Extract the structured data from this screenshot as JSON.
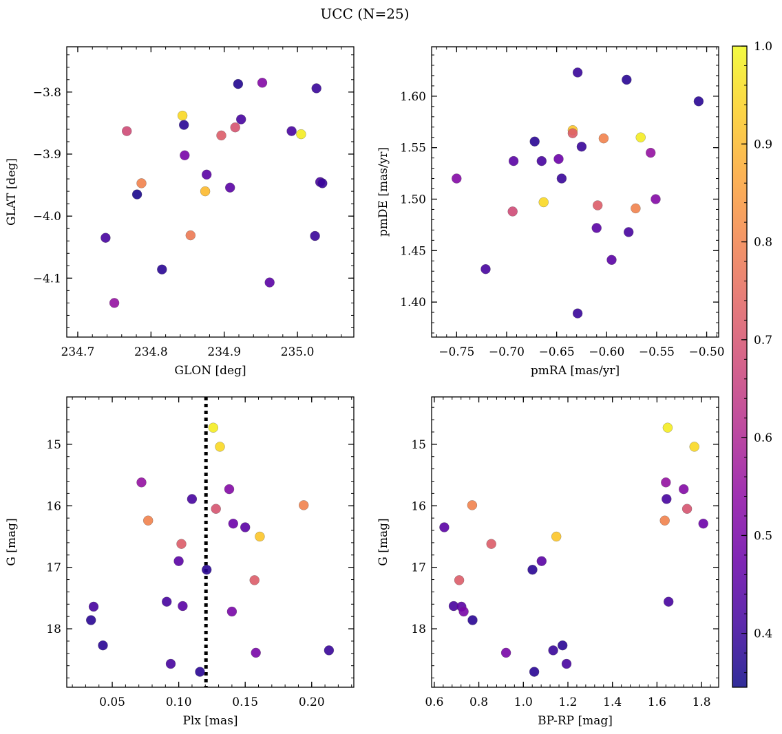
{
  "figure": {
    "title": "UCC (N=25)",
    "colorbar": {
      "min": 0.345,
      "max": 1.0,
      "ticks": [
        0.4,
        0.5,
        0.6,
        0.7,
        0.8,
        0.9,
        1.0
      ],
      "colormap": "plasma"
    }
  },
  "chart_data": [
    {
      "type": "scatter",
      "xlabel": "GLON [deg]",
      "ylabel": "GLAT [deg]",
      "xlim": [
        234.685,
        235.077
      ],
      "ylim": [
        -4.195,
        -3.727
      ],
      "y_inverted": false,
      "xticks": [
        234.7,
        234.8,
        234.9,
        235.0
      ],
      "yticks": [
        -4.1,
        -4.0,
        -3.9,
        -3.8
      ],
      "points": [
        {
          "x": 234.919,
          "y": -3.787,
          "c": 0.37
        },
        {
          "x": 234.952,
          "y": -3.785,
          "c": 0.52
        },
        {
          "x": 235.026,
          "y": -3.794,
          "c": 0.4
        },
        {
          "x": 234.843,
          "y": -3.838,
          "c": 0.95
        },
        {
          "x": 234.923,
          "y": -3.844,
          "c": 0.42
        },
        {
          "x": 234.845,
          "y": -3.853,
          "c": 0.38
        },
        {
          "x": 234.915,
          "y": -3.857,
          "c": 0.7
        },
        {
          "x": 234.767,
          "y": -3.863,
          "c": 0.68
        },
        {
          "x": 234.896,
          "y": -3.87,
          "c": 0.72
        },
        {
          "x": 234.992,
          "y": -3.863,
          "c": 0.42
        },
        {
          "x": 235.005,
          "y": -3.868,
          "c": 0.98
        },
        {
          "x": 234.846,
          "y": -3.902,
          "c": 0.5
        },
        {
          "x": 234.876,
          "y": -3.933,
          "c": 0.45
        },
        {
          "x": 235.031,
          "y": -3.945,
          "c": 0.42
        },
        {
          "x": 235.034,
          "y": -3.947,
          "c": 0.4
        },
        {
          "x": 234.787,
          "y": -3.947,
          "c": 0.8
        },
        {
          "x": 234.908,
          "y": -3.954,
          "c": 0.45
        },
        {
          "x": 234.874,
          "y": -3.96,
          "c": 0.9
        },
        {
          "x": 234.781,
          "y": -3.965,
          "c": 0.36
        },
        {
          "x": 234.854,
          "y": -4.031,
          "c": 0.78
        },
        {
          "x": 235.024,
          "y": -4.032,
          "c": 0.4
        },
        {
          "x": 234.738,
          "y": -4.035,
          "c": 0.42
        },
        {
          "x": 234.815,
          "y": -4.086,
          "c": 0.38
        },
        {
          "x": 234.962,
          "y": -4.107,
          "c": 0.45
        },
        {
          "x": 234.75,
          "y": -4.14,
          "c": 0.55
        }
      ]
    },
    {
      "type": "scatter",
      "xlabel": "pmRA [mas/yr]",
      "ylabel": "pmDE [mas/yr]",
      "xlim": [
        -0.775,
        -0.488
      ],
      "ylim": [
        1.366,
        1.648
      ],
      "y_inverted": false,
      "xticks": [
        -0.75,
        -0.7,
        -0.65,
        -0.6,
        -0.55,
        -0.5
      ],
      "yticks": [
        1.4,
        1.45,
        1.5,
        1.55,
        1.6
      ],
      "points": [
        {
          "x": -0.629,
          "y": 1.623,
          "c": 0.4
        },
        {
          "x": -0.58,
          "y": 1.616,
          "c": 0.38
        },
        {
          "x": -0.508,
          "y": 1.595,
          "c": 0.38
        },
        {
          "x": -0.634,
          "y": 1.567,
          "c": 0.92
        },
        {
          "x": -0.634,
          "y": 1.564,
          "c": 0.72
        },
        {
          "x": -0.566,
          "y": 1.56,
          "c": 0.98
        },
        {
          "x": -0.603,
          "y": 1.559,
          "c": 0.8
        },
        {
          "x": -0.672,
          "y": 1.556,
          "c": 0.38
        },
        {
          "x": -0.625,
          "y": 1.551,
          "c": 0.4
        },
        {
          "x": -0.556,
          "y": 1.545,
          "c": 0.55
        },
        {
          "x": -0.648,
          "y": 1.539,
          "c": 0.48
        },
        {
          "x": -0.693,
          "y": 1.537,
          "c": 0.45
        },
        {
          "x": -0.665,
          "y": 1.537,
          "c": 0.42
        },
        {
          "x": -0.75,
          "y": 1.52,
          "c": 0.52
        },
        {
          "x": -0.645,
          "y": 1.52,
          "c": 0.4
        },
        {
          "x": -0.551,
          "y": 1.5,
          "c": 0.52
        },
        {
          "x": -0.663,
          "y": 1.497,
          "c": 0.95
        },
        {
          "x": -0.609,
          "y": 1.494,
          "c": 0.72
        },
        {
          "x": -0.571,
          "y": 1.491,
          "c": 0.8
        },
        {
          "x": -0.694,
          "y": 1.488,
          "c": 0.68
        },
        {
          "x": -0.61,
          "y": 1.472,
          "c": 0.45
        },
        {
          "x": -0.578,
          "y": 1.468,
          "c": 0.42
        },
        {
          "x": -0.595,
          "y": 1.441,
          "c": 0.45
        },
        {
          "x": -0.721,
          "y": 1.432,
          "c": 0.42
        },
        {
          "x": -0.629,
          "y": 1.389,
          "c": 0.4
        }
      ]
    },
    {
      "type": "scatter",
      "xlabel": "Plx [mas]",
      "ylabel": "G [mag]",
      "xlim": [
        0.0158,
        0.2317
      ],
      "ylim": [
        18.95,
        14.23
      ],
      "y_inverted": true,
      "xticks": [
        0.05,
        0.1,
        0.15,
        0.2
      ],
      "yticks": [
        15,
        16,
        17,
        18
      ],
      "vline": {
        "x": 0.1205,
        "style": "dotted"
      },
      "points": [
        {
          "x": 0.126,
          "y": 14.73,
          "c": 0.98
        },
        {
          "x": 0.131,
          "y": 15.04,
          "c": 0.95
        },
        {
          "x": 0.072,
          "y": 15.62,
          "c": 0.55
        },
        {
          "x": 0.138,
          "y": 15.73,
          "c": 0.52
        },
        {
          "x": 0.11,
          "y": 15.89,
          "c": 0.42
        },
        {
          "x": 0.194,
          "y": 15.99,
          "c": 0.8
        },
        {
          "x": 0.128,
          "y": 16.05,
          "c": 0.7
        },
        {
          "x": 0.077,
          "y": 16.24,
          "c": 0.8
        },
        {
          "x": 0.141,
          "y": 16.29,
          "c": 0.48
        },
        {
          "x": 0.15,
          "y": 16.35,
          "c": 0.45
        },
        {
          "x": 0.161,
          "y": 16.5,
          "c": 0.92
        },
        {
          "x": 0.102,
          "y": 16.62,
          "c": 0.72
        },
        {
          "x": 0.1,
          "y": 16.9,
          "c": 0.45
        },
        {
          "x": 0.121,
          "y": 17.04,
          "c": 0.38
        },
        {
          "x": 0.157,
          "y": 17.21,
          "c": 0.72
        },
        {
          "x": 0.091,
          "y": 17.56,
          "c": 0.42
        },
        {
          "x": 0.036,
          "y": 17.64,
          "c": 0.42
        },
        {
          "x": 0.103,
          "y": 17.63,
          "c": 0.45
        },
        {
          "x": 0.14,
          "y": 17.72,
          "c": 0.5
        },
        {
          "x": 0.034,
          "y": 17.86,
          "c": 0.38
        },
        {
          "x": 0.043,
          "y": 18.27,
          "c": 0.38
        },
        {
          "x": 0.158,
          "y": 18.39,
          "c": 0.5
        },
        {
          "x": 0.213,
          "y": 18.35,
          "c": 0.4
        },
        {
          "x": 0.094,
          "y": 18.57,
          "c": 0.42
        },
        {
          "x": 0.116,
          "y": 18.7,
          "c": 0.38
        }
      ]
    },
    {
      "type": "scatter",
      "xlabel": "BP-RP [mag]",
      "ylabel": "G [mag]",
      "xlim": [
        0.588,
        1.877
      ],
      "ylim": [
        18.95,
        14.23
      ],
      "y_inverted": true,
      "xticks": [
        0.6,
        0.8,
        1.0,
        1.2,
        1.4,
        1.6,
        1.8
      ],
      "yticks": [
        15,
        16,
        17,
        18
      ],
      "points": [
        {
          "x": 1.648,
          "y": 14.73,
          "c": 0.98
        },
        {
          "x": 1.768,
          "y": 15.04,
          "c": 0.95
        },
        {
          "x": 1.64,
          "y": 15.62,
          "c": 0.55
        },
        {
          "x": 1.72,
          "y": 15.73,
          "c": 0.52
        },
        {
          "x": 1.643,
          "y": 15.89,
          "c": 0.42
        },
        {
          "x": 0.77,
          "y": 15.99,
          "c": 0.8
        },
        {
          "x": 1.735,
          "y": 16.05,
          "c": 0.7
        },
        {
          "x": 1.635,
          "y": 16.24,
          "c": 0.8
        },
        {
          "x": 1.808,
          "y": 16.29,
          "c": 0.48
        },
        {
          "x": 0.645,
          "y": 16.35,
          "c": 0.45
        },
        {
          "x": 1.148,
          "y": 16.5,
          "c": 0.92
        },
        {
          "x": 0.856,
          "y": 16.62,
          "c": 0.72
        },
        {
          "x": 1.082,
          "y": 16.9,
          "c": 0.45
        },
        {
          "x": 1.041,
          "y": 17.04,
          "c": 0.38
        },
        {
          "x": 0.712,
          "y": 17.21,
          "c": 0.72
        },
        {
          "x": 1.652,
          "y": 17.56,
          "c": 0.42
        },
        {
          "x": 0.687,
          "y": 17.63,
          "c": 0.42
        },
        {
          "x": 0.722,
          "y": 17.64,
          "c": 0.45
        },
        {
          "x": 0.732,
          "y": 17.72,
          "c": 0.5
        },
        {
          "x": 0.772,
          "y": 17.86,
          "c": 0.38
        },
        {
          "x": 1.176,
          "y": 18.27,
          "c": 0.38
        },
        {
          "x": 1.134,
          "y": 18.35,
          "c": 0.4
        },
        {
          "x": 0.922,
          "y": 18.39,
          "c": 0.5
        },
        {
          "x": 1.194,
          "y": 18.57,
          "c": 0.42
        },
        {
          "x": 1.049,
          "y": 18.7,
          "c": 0.38
        }
      ]
    }
  ]
}
